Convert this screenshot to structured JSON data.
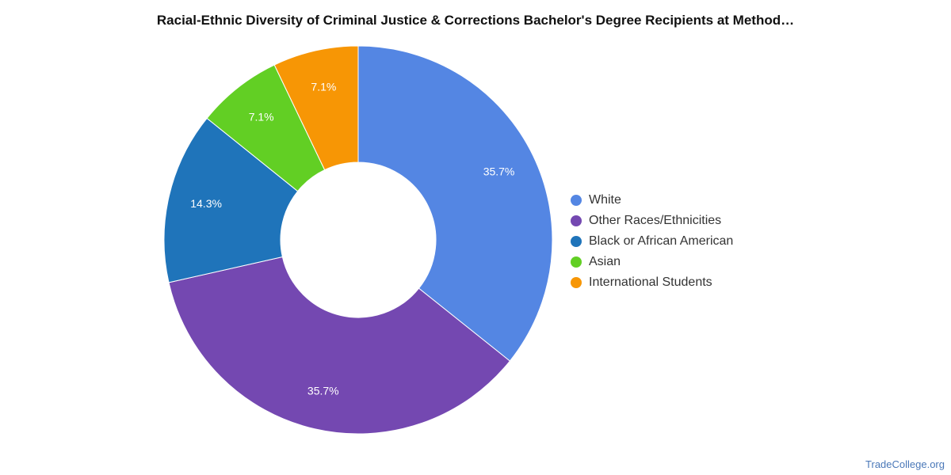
{
  "chart_data": {
    "type": "pie",
    "title": "Racial-Ethnic Diversity of Criminal Justice & Corrections Bachelor's Degree Recipients at Method…",
    "legend_position": "right",
    "donut": true,
    "slices": [
      {
        "name": "White",
        "value": 35.7,
        "label": "35.7%",
        "color": "#5486e3"
      },
      {
        "name": "Other Races/Ethnicities",
        "value": 35.7,
        "label": "35.7%",
        "color": "#7448b1"
      },
      {
        "name": "Black or African American",
        "value": 14.3,
        "label": "14.3%",
        "color": "#1f74ba"
      },
      {
        "name": "Asian",
        "value": 7.1,
        "label": "7.1%",
        "color": "#62cf24"
      },
      {
        "name": "International Students",
        "value": 7.1,
        "label": "7.1%",
        "color": "#f79605"
      }
    ]
  },
  "source": "TradeCollege.org"
}
